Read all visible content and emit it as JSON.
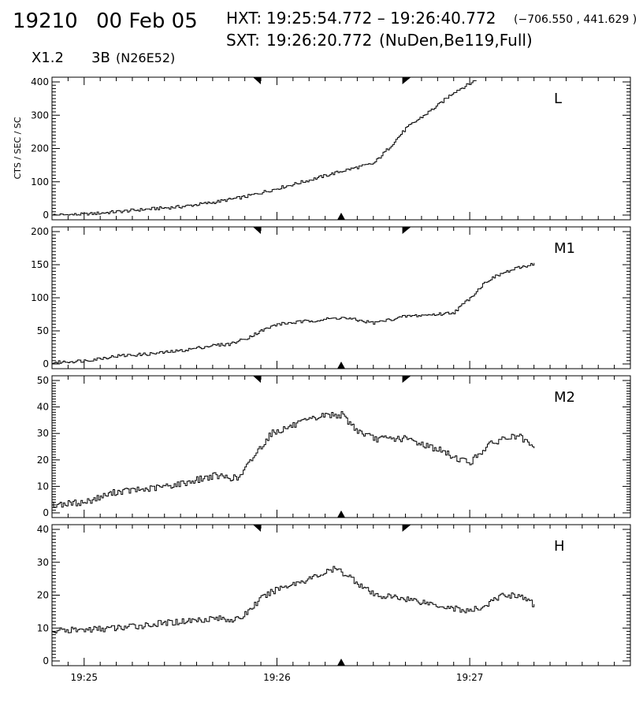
{
  "header": {
    "event_id": "19210",
    "date": "00 Feb 05",
    "hxt_label": "HXT:",
    "hxt_range": "19:25:54.772 – 19:26:40.772",
    "coords": "(−706.550 , 441.629 )",
    "sxt_label": "SXT:",
    "sxt_time": "19:26:20.772",
    "sxt_info": "(NuDen,Be119,Full)",
    "flare_class": "X1.2",
    "region": "3B",
    "location": "(N26E52)"
  },
  "chart_data": {
    "type": "line",
    "style": "histogram-step",
    "ylabel": "CTS / SEC / SC",
    "x_axis": {
      "min": "19:24:50",
      "max": "19:27:50",
      "tick_labels": [
        "19:25",
        "19:26",
        "19:27"
      ],
      "tick_times": [
        "19:25:00",
        "19:26:00",
        "19:27:00"
      ]
    },
    "markers": {
      "integration_start": "19:25:54",
      "integration_end": "19:26:40",
      "sxt_time": "19:26:20"
    },
    "panels": [
      {
        "label": "L",
        "ylim": [
          0,
          400
        ],
        "yticks": [
          "0",
          "100",
          "200",
          "300",
          "400"
        ],
        "x": [
          "19:24:50",
          "19:25:00",
          "19:25:10",
          "19:25:20",
          "19:25:30",
          "19:25:40",
          "19:25:50",
          "19:26:00",
          "19:26:10",
          "19:26:20",
          "19:26:30",
          "19:26:35",
          "19:26:40",
          "19:26:45",
          "19:26:50",
          "19:26:55",
          "19:27:00",
          "19:27:02"
        ],
        "values": [
          0,
          2,
          10,
          18,
          25,
          38,
          55,
          80,
          105,
          132,
          155,
          205,
          260,
          295,
          330,
          370,
          395,
          408
        ]
      },
      {
        "label": "M1",
        "ylim": [
          0,
          200
        ],
        "yticks": [
          "0",
          "50",
          "100",
          "150",
          "200"
        ],
        "x": [
          "19:24:50",
          "19:25:00",
          "19:25:10",
          "19:25:20",
          "19:25:30",
          "19:25:40",
          "19:25:45",
          "19:25:50",
          "19:25:55",
          "19:26:00",
          "19:26:10",
          "19:26:20",
          "19:26:30",
          "19:26:40",
          "19:26:50",
          "19:26:55",
          "19:27:00",
          "19:27:05",
          "19:27:10",
          "19:27:15",
          "19:27:20"
        ],
        "values": [
          2,
          5,
          12,
          15,
          20,
          28,
          30,
          38,
          50,
          60,
          65,
          70,
          62,
          72,
          75,
          78,
          100,
          125,
          137,
          145,
          152
        ]
      },
      {
        "label": "M2",
        "ylim": [
          0,
          50
        ],
        "yticks": [
          "0",
          "10",
          "20",
          "30",
          "40",
          "50"
        ],
        "x": [
          "19:24:50",
          "19:25:00",
          "19:25:10",
          "19:25:20",
          "19:25:30",
          "19:25:40",
          "19:25:48",
          "19:25:53",
          "19:25:58",
          "19:26:05",
          "19:26:15",
          "19:26:20",
          "19:26:25",
          "19:26:30",
          "19:26:40",
          "19:26:50",
          "19:26:55",
          "19:27:00",
          "19:27:05",
          "19:27:10",
          "19:27:15",
          "19:27:20"
        ],
        "values": [
          3,
          4,
          8,
          9,
          11,
          14,
          13,
          22,
          30,
          33,
          37,
          37,
          31,
          28,
          28,
          24,
          21,
          19,
          25,
          28,
          29,
          24
        ]
      },
      {
        "label": "H",
        "ylim": [
          0,
          40
        ],
        "yticks": [
          "0",
          "10",
          "20",
          "30",
          "40"
        ],
        "x": [
          "19:24:50",
          "19:25:00",
          "19:25:10",
          "19:25:20",
          "19:25:30",
          "19:25:40",
          "19:25:48",
          "19:25:55",
          "19:26:00",
          "19:26:10",
          "19:26:18",
          "19:26:22",
          "19:26:30",
          "19:26:40",
          "19:26:50",
          "19:26:55",
          "19:27:00",
          "19:27:05",
          "19:27:10",
          "19:27:15",
          "19:27:20"
        ],
        "values": [
          9,
          9.5,
          10,
          11,
          12,
          13,
          12.5,
          19,
          22,
          25,
          28,
          26,
          20,
          19,
          17,
          16,
          15,
          17,
          20,
          20,
          17
        ]
      }
    ]
  }
}
